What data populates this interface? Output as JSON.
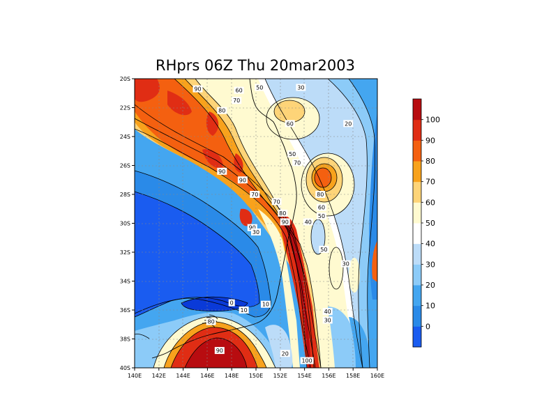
{
  "title": "RHprs 06Z Thu 20mar2003",
  "x_ticks": [
    "140E",
    "142E",
    "144E",
    "146E",
    "148E",
    "150E",
    "152E",
    "154E",
    "156E",
    "158E",
    "160E"
  ],
  "y_ticks": [
    "20S",
    "22S",
    "24S",
    "26S",
    "28S",
    "30S",
    "32S",
    "34S",
    "36S",
    "38S",
    "40S"
  ],
  "colorbar": {
    "labels": [
      "0",
      "10",
      "20",
      "30",
      "40",
      "50",
      "60",
      "70",
      "80",
      "90",
      "100"
    ],
    "colors": [
      "#1a5cf0",
      "#2a8ae8",
      "#44a6f0",
      "#8ccbf8",
      "#bcdcf8",
      "#ffffff",
      "#fffad0",
      "#fed478",
      "#f8a21c",
      "#f46010",
      "#e02d14",
      "#b80c10"
    ]
  },
  "contour_labels": [
    {
      "text": "90",
      "lon": 145.2,
      "lat": -20.7
    },
    {
      "text": "80",
      "lon": 147.2,
      "lat": -22.2
    },
    {
      "text": "60",
      "lon": 148.6,
      "lat": -20.8
    },
    {
      "text": "70",
      "lon": 148.4,
      "lat": -21.5
    },
    {
      "text": "50",
      "lon": 150.3,
      "lat": -20.6
    },
    {
      "text": "30",
      "lon": 153.7,
      "lat": -20.6
    },
    {
      "text": "60",
      "lon": 152.8,
      "lat": -23.1
    },
    {
      "text": "20",
      "lon": 157.6,
      "lat": -23.1
    },
    {
      "text": "50",
      "lon": 153.0,
      "lat": -25.2
    },
    {
      "text": "70",
      "lon": 153.4,
      "lat": -25.8
    },
    {
      "text": "90",
      "lon": 147.2,
      "lat": -26.4
    },
    {
      "text": "90",
      "lon": 148.9,
      "lat": -27.0
    },
    {
      "text": "70",
      "lon": 149.9,
      "lat": -28.0
    },
    {
      "text": "80",
      "lon": 155.3,
      "lat": -28.0
    },
    {
      "text": "60",
      "lon": 155.4,
      "lat": -28.9
    },
    {
      "text": "70",
      "lon": 151.7,
      "lat": -28.5
    },
    {
      "text": "50",
      "lon": 155.4,
      "lat": -29.5
    },
    {
      "text": "80",
      "lon": 152.2,
      "lat": -29.3
    },
    {
      "text": "90",
      "lon": 152.4,
      "lat": -29.9
    },
    {
      "text": "40",
      "lon": 154.3,
      "lat": -29.9
    },
    {
      "text": "90",
      "lon": 149.7,
      "lat": -30.3
    },
    {
      "text": "30",
      "lon": 150.0,
      "lat": -30.6
    },
    {
      "text": "50",
      "lon": 155.6,
      "lat": -31.8
    },
    {
      "text": "30",
      "lon": 157.4,
      "lat": -32.8
    },
    {
      "text": "10",
      "lon": 150.8,
      "lat": -35.6
    },
    {
      "text": "0",
      "lon": 148.0,
      "lat": -35.5
    },
    {
      "text": "10",
      "lon": 149.0,
      "lat": -36.0
    },
    {
      "text": "40",
      "lon": 155.9,
      "lat": -36.1
    },
    {
      "text": "30",
      "lon": 155.9,
      "lat": -36.7
    },
    {
      "text": "80",
      "lon": 146.3,
      "lat": -36.8
    },
    {
      "text": "90",
      "lon": 147.0,
      "lat": -38.8
    },
    {
      "text": "20",
      "lon": 152.4,
      "lat": -39.0
    },
    {
      "text": "100",
      "lon": 154.2,
      "lat": -39.5
    }
  ]
}
